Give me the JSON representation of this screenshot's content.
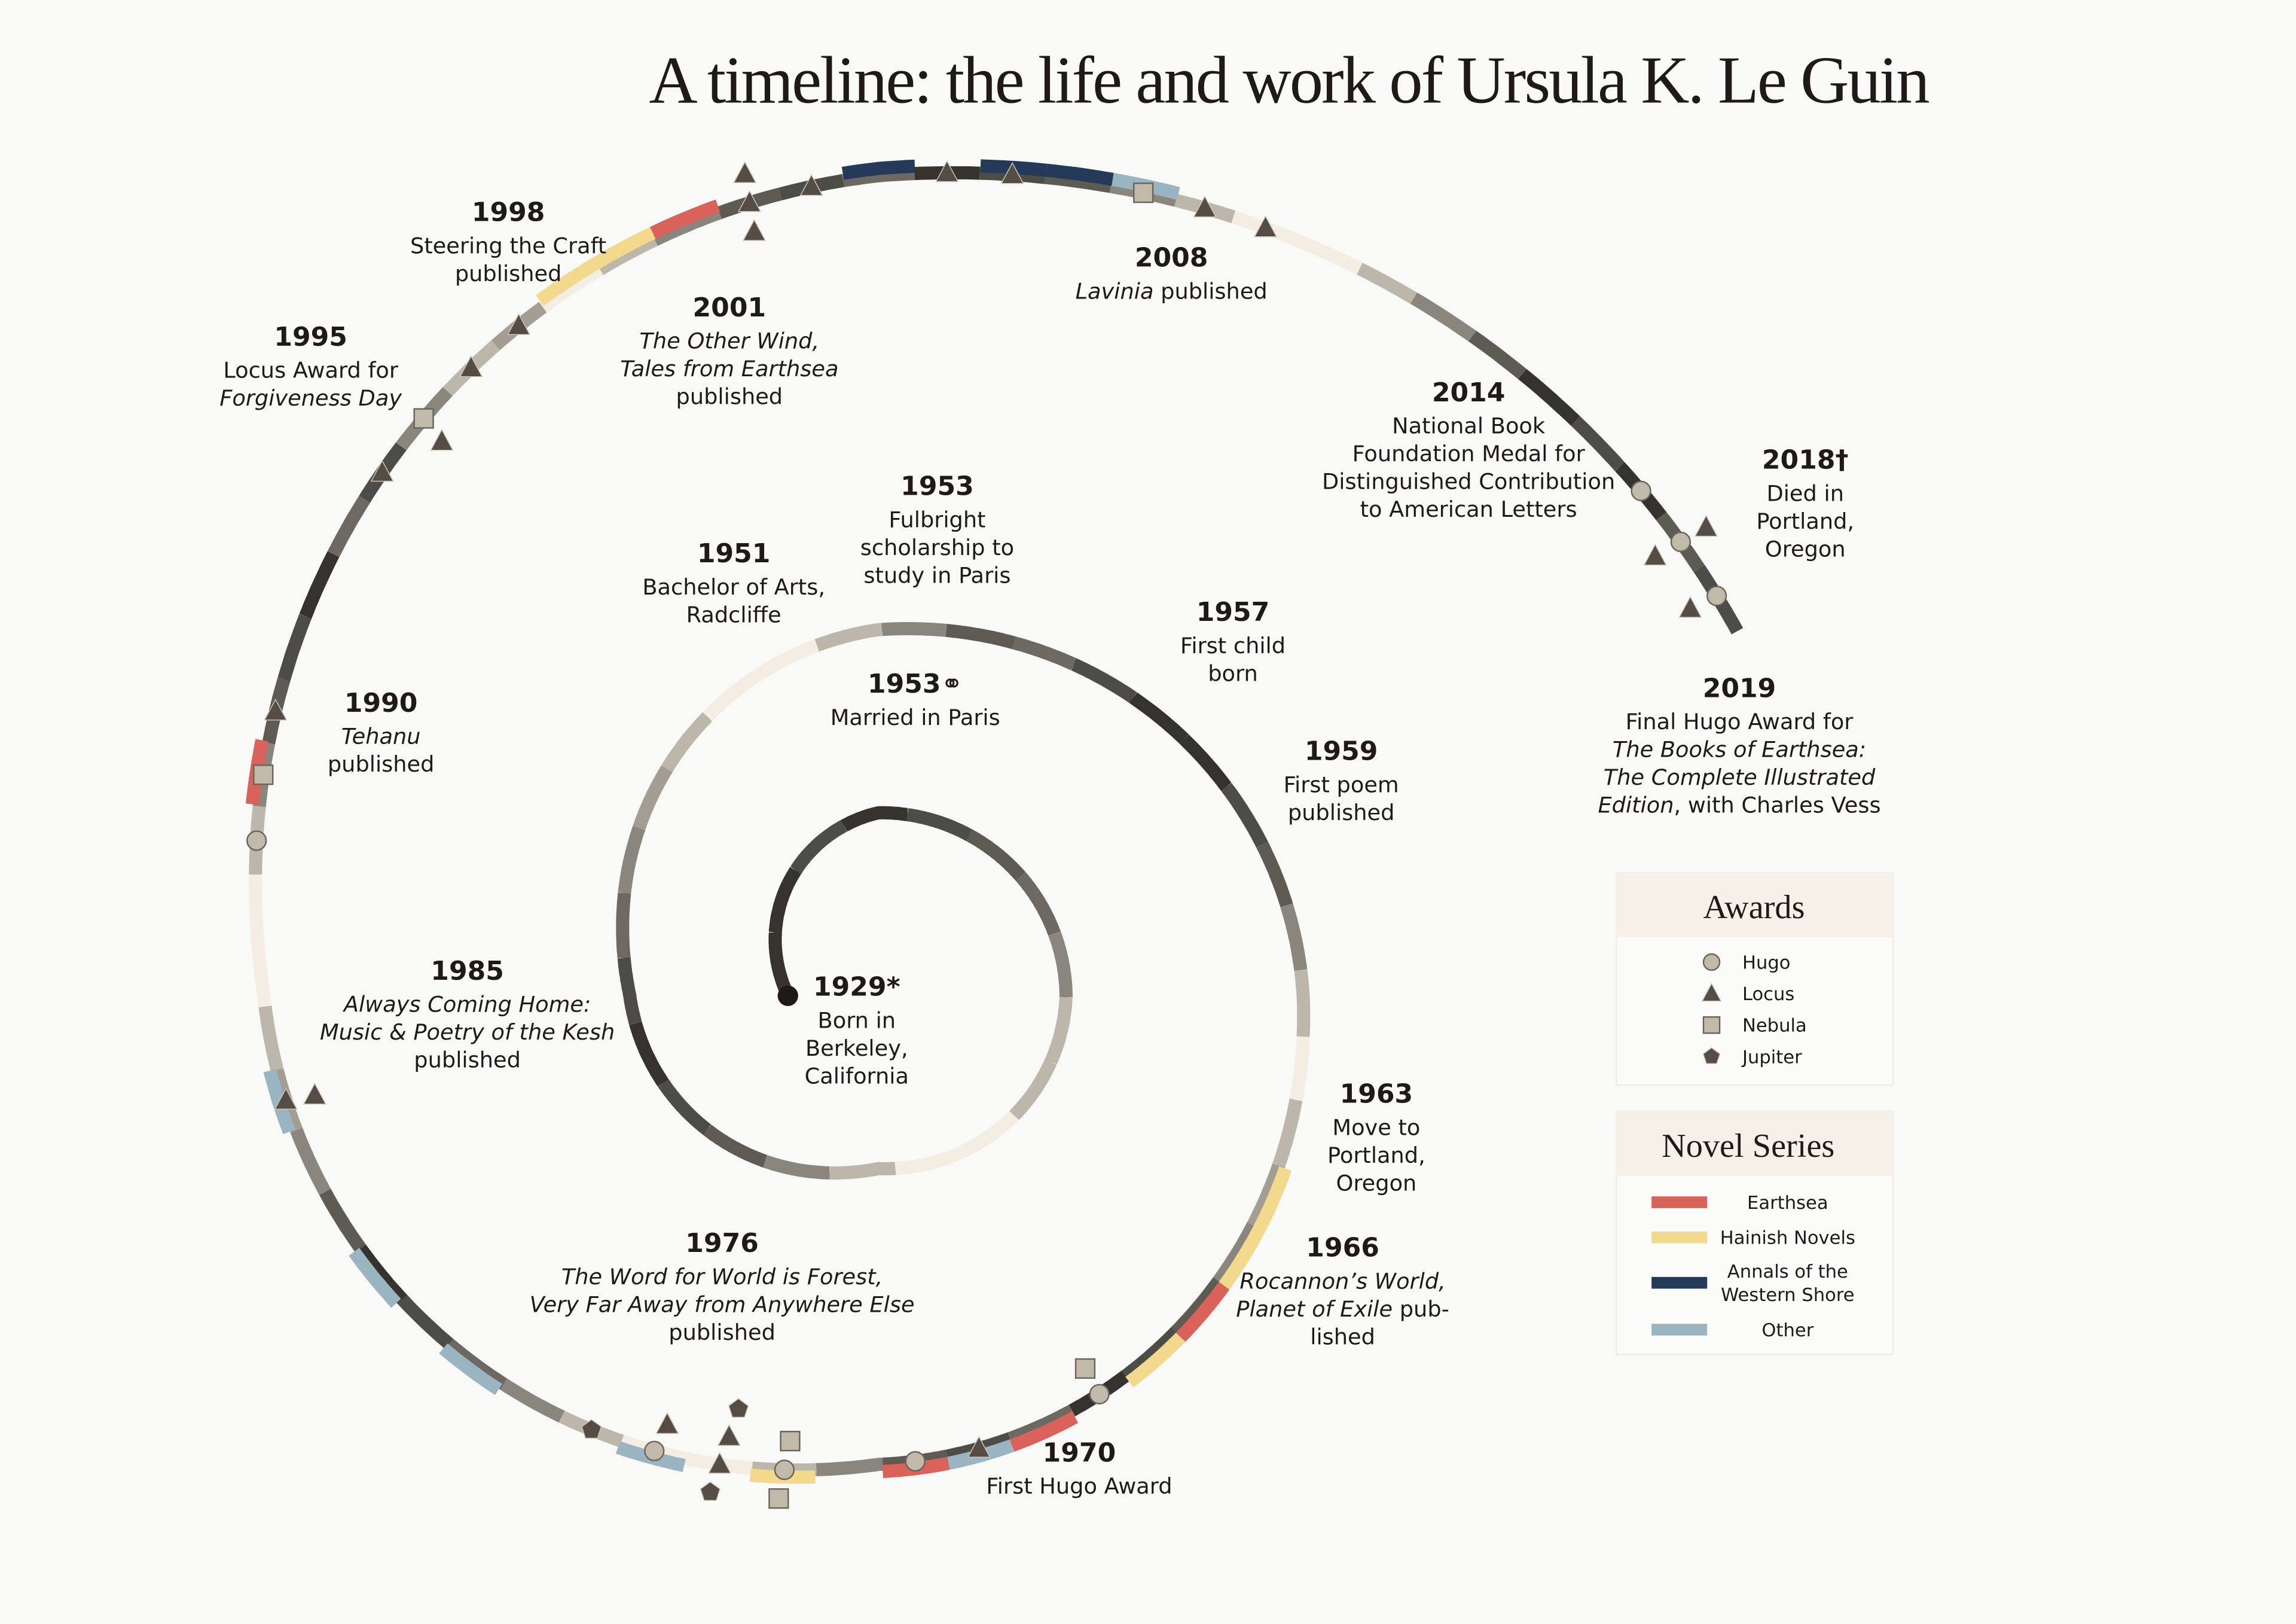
{
  "title": "A timeline: the life and work of Ursula K. Le Guin",
  "colors": {
    "background": "#f9f9f8",
    "shades": [
      "#4d4c47",
      "#5e5b55",
      "#8b867d",
      "#bdb6aa",
      "#f3ede3",
      "#36332f",
      "#6d6962",
      "#a39d93"
    ],
    "earthsea": "#d9625a",
    "hainish": "#f2d98e",
    "annals": "#253a59",
    "other": "#9ab5c1",
    "marker_light": "#c1baab",
    "marker_dark": "#554d45"
  },
  "years": {
    "start": 1929,
    "end": 2019
  },
  "labels": [
    {
      "year": "1929*",
      "lines": [
        [
          {
            "t": "Born in"
          }
        ],
        [
          {
            "t": "Berkeley,"
          }
        ],
        [
          {
            "t": "California"
          }
        ]
      ]
    },
    {
      "year": "1951",
      "lines": [
        [
          {
            "t": "Bachelor of Arts,"
          }
        ],
        [
          {
            "t": "Radcliffe"
          }
        ]
      ]
    },
    {
      "year": "1953",
      "lines": [
        [
          {
            "t": "Fulbright"
          }
        ],
        [
          {
            "t": "scholarship to"
          }
        ],
        [
          {
            "t": "study in Paris"
          }
        ]
      ]
    },
    {
      "year": "1953⚭",
      "lines": [
        [
          {
            "t": "Married in Paris"
          }
        ]
      ]
    },
    {
      "year": "1957",
      "lines": [
        [
          {
            "t": "First child"
          }
        ],
        [
          {
            "t": "born"
          }
        ]
      ]
    },
    {
      "year": "1959",
      "lines": [
        [
          {
            "t": "First poem"
          }
        ],
        [
          {
            "t": "published"
          }
        ]
      ]
    },
    {
      "year": "1963",
      "lines": [
        [
          {
            "t": "Move to"
          }
        ],
        [
          {
            "t": "Portland,"
          }
        ],
        [
          {
            "t": "Oregon"
          }
        ]
      ]
    },
    {
      "year": "1966",
      "lines": [
        [
          {
            "t": "Rocannon’s World,",
            "i": true
          }
        ],
        [
          {
            "t": "Planet of Exile",
            "i": true
          },
          {
            "t": " pub-"
          }
        ],
        [
          {
            "t": "lished"
          }
        ]
      ]
    },
    {
      "year": "1970",
      "lines": [
        [
          {
            "t": "First Hugo Award"
          }
        ]
      ]
    },
    {
      "year": "1976",
      "lines": [
        [
          {
            "t": "The Word for World is Forest,",
            "i": true
          }
        ],
        [
          {
            "t": "Very Far Away from Anywhere Else",
            "i": true
          }
        ],
        [
          {
            "t": "published"
          }
        ]
      ]
    },
    {
      "year": "1985",
      "lines": [
        [
          {
            "t": "Always Coming Home:",
            "i": true
          }
        ],
        [
          {
            "t": "Music & Poetry of the Kesh",
            "i": true
          }
        ],
        [
          {
            "t": "published"
          }
        ]
      ]
    },
    {
      "year": "1990",
      "lines": [
        [
          {
            "t": "Tehanu",
            "i": true
          }
        ],
        [
          {
            "t": "published"
          }
        ]
      ]
    },
    {
      "year": "1995",
      "lines": [
        [
          {
            "t": "Locus Award for"
          }
        ],
        [
          {
            "t": "Forgiveness Day",
            "i": true
          }
        ]
      ]
    },
    {
      "year": "1998",
      "lines": [
        [
          {
            "t": "Steering the Craft"
          }
        ],
        [
          {
            "t": "published"
          }
        ]
      ]
    },
    {
      "year": "2001",
      "lines": [
        [
          {
            "t": "The Other Wind,",
            "i": true
          }
        ],
        [
          {
            "t": "Tales from Earthsea",
            "i": true
          }
        ],
        [
          {
            "t": "published"
          }
        ]
      ]
    },
    {
      "year": "2008",
      "lines": [
        [
          {
            "t": "Lavinia",
            "i": true
          },
          {
            "t": " published"
          }
        ]
      ]
    },
    {
      "year": "2014",
      "lines": [
        [
          {
            "t": "National Book"
          }
        ],
        [
          {
            "t": "Foundation Medal for"
          }
        ],
        [
          {
            "t": "Distinguished Contribution"
          }
        ],
        [
          {
            "t": "to American Letters"
          }
        ]
      ]
    },
    {
      "year": "2018†",
      "lines": [
        [
          {
            "t": "Died in"
          }
        ],
        [
          {
            "t": "Portland,"
          }
        ],
        [
          {
            "t": "Oregon"
          }
        ]
      ]
    },
    {
      "year": "2019",
      "lines": [
        [
          {
            "t": "Final Hugo Award for"
          }
        ],
        [
          {
            "t": "The Books of Earthsea:",
            "i": true
          }
        ],
        [
          {
            "t": "The Complete Illustrated",
            "i": true
          }
        ],
        [
          {
            "t": "Edition",
            "i": true
          },
          {
            "t": ", with Charles Vess"
          }
        ]
      ]
    }
  ],
  "series": [
    {
      "type": "hainish",
      "year": 1966
    },
    {
      "type": "hainish",
      "year": 1967
    },
    {
      "type": "earthsea",
      "year": 1968
    },
    {
      "type": "hainish",
      "year": 1969
    },
    {
      "type": "earthsea",
      "year": 1971
    },
    {
      "type": "other",
      "year": 1972
    },
    {
      "type": "earthsea",
      "year": 1973
    },
    {
      "type": "hainish",
      "year": 1975
    },
    {
      "type": "hainish",
      "year": 1977
    },
    {
      "type": "other",
      "year": 1977
    },
    {
      "type": "other",
      "year": 1980
    },
    {
      "type": "other",
      "year": 1982
    },
    {
      "type": "other",
      "year": 1985
    },
    {
      "type": "earthsea",
      "year": 1990
    },
    {
      "type": "hainish",
      "year": 1999
    },
    {
      "type": "hainish",
      "year": 2000
    },
    {
      "type": "earthsea",
      "year": 2001
    },
    {
      "type": "annals",
      "year": 2004
    },
    {
      "type": "annals",
      "year": 2006
    },
    {
      "type": "annals",
      "year": 2007
    },
    {
      "type": "other",
      "year": 2008
    }
  ],
  "awards": [
    {
      "type": "hugo",
      "year": 1970
    },
    {
      "type": "nebula",
      "year": 1970
    },
    {
      "type": "locus",
      "year": 1972
    },
    {
      "type": "hugo",
      "year": 1973
    },
    {
      "type": "hugo",
      "year": 1975
    },
    {
      "type": "nebula",
      "year": 1975
    },
    {
      "type": "nebula",
      "year": 1975
    },
    {
      "type": "locus",
      "year": 1976
    },
    {
      "type": "locus",
      "year": 1976
    },
    {
      "type": "jupiter",
      "year": 1976
    },
    {
      "type": "jupiter",
      "year": 1976
    },
    {
      "type": "hugo",
      "year": 1977
    },
    {
      "type": "locus",
      "year": 1977
    },
    {
      "type": "jupiter",
      "year": 1978
    },
    {
      "type": "locus",
      "year": 1985
    },
    {
      "type": "locus",
      "year": 1985
    },
    {
      "type": "nebula",
      "year": 1990
    },
    {
      "type": "hugo",
      "year": 1989
    },
    {
      "type": "locus",
      "year": 1991
    },
    {
      "type": "locus",
      "year": 1995
    },
    {
      "type": "nebula",
      "year": 1996
    },
    {
      "type": "locus",
      "year": 1996
    },
    {
      "type": "locus",
      "year": 1997
    },
    {
      "type": "locus",
      "year": 1998
    },
    {
      "type": "locus",
      "year": 2002
    },
    {
      "type": "locus",
      "year": 2002
    },
    {
      "type": "locus",
      "year": 2002
    },
    {
      "type": "locus",
      "year": 2003
    },
    {
      "type": "locus",
      "year": 2005
    },
    {
      "type": "locus",
      "year": 2006
    },
    {
      "type": "nebula",
      "year": 2008
    },
    {
      "type": "locus",
      "year": 2009
    },
    {
      "type": "locus",
      "year": 2010
    },
    {
      "type": "hugo",
      "year": 2017
    },
    {
      "type": "hugo",
      "year": 2018
    },
    {
      "type": "locus",
      "year": 2018
    },
    {
      "type": "locus",
      "year": 2018
    },
    {
      "type": "hugo",
      "year": 2019
    },
    {
      "type": "locus",
      "year": 2019
    }
  ],
  "legend": {
    "awards_title": "Awards",
    "awards": [
      {
        "type": "hugo",
        "label": "Hugo"
      },
      {
        "type": "locus",
        "label": "Locus"
      },
      {
        "type": "nebula",
        "label": "Nebula"
      },
      {
        "type": "jupiter",
        "label": "Jupiter"
      }
    ],
    "series_title": "Novel Series",
    "series": [
      {
        "type": "earthsea",
        "label": [
          "Earthsea"
        ]
      },
      {
        "type": "hainish",
        "label": [
          "Hainish Novels"
        ]
      },
      {
        "type": "annals",
        "label": [
          "Annals of the",
          "Western Shore"
        ]
      },
      {
        "type": "other",
        "label": [
          "Other"
        ]
      }
    ]
  }
}
